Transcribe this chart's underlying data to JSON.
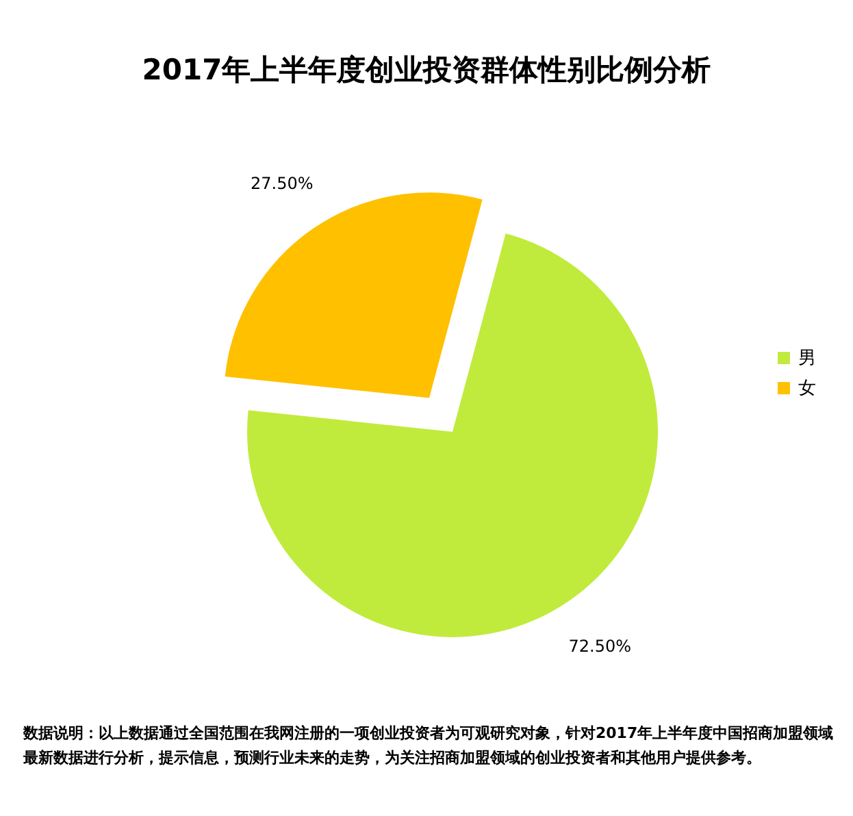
{
  "chart_data": {
    "type": "pie",
    "title": "2017年上半年度创业投资群体性别比例分析",
    "categories": [
      "男",
      "女"
    ],
    "values": [
      72.5,
      27.5
    ],
    "colors": [
      "#c0eb3c",
      "#ffc000"
    ],
    "value_labels": [
      "72.50%",
      "27.50%"
    ],
    "legend": "right",
    "annotations": [
      "数据说明：以上数据通过全国范围在我网注册的一项创业投资者为可观研究对象，针对2017年上半年度中国招商加盟领域最新数据进行分析，提示信息，预测行业未来的走势，为关注招商加盟领域的创业投资者和其他用户提供参考。"
    ]
  }
}
